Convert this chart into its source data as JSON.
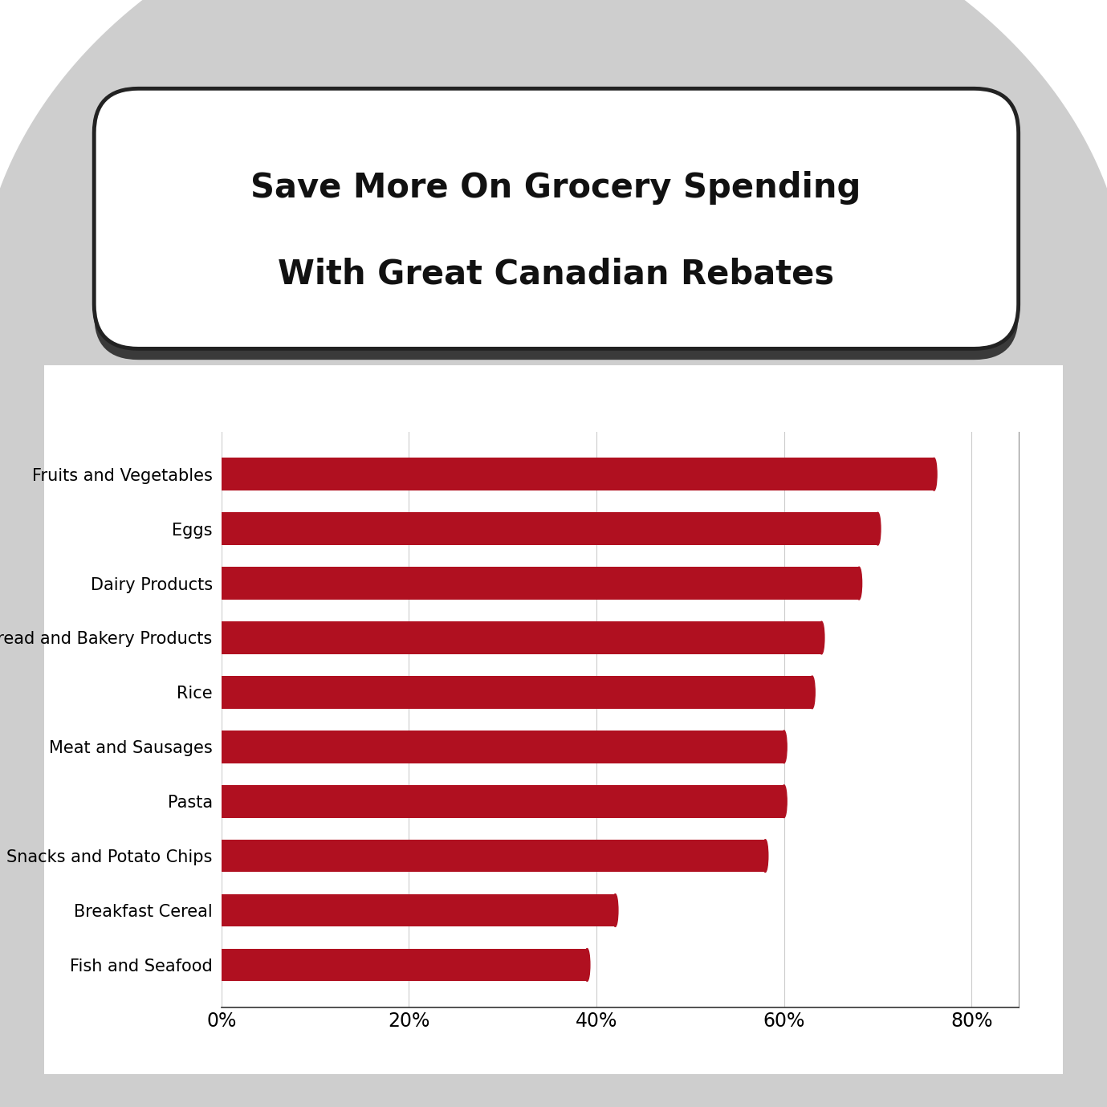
{
  "title_line1": "Save More On Grocery Spending",
  "title_line2": "With Great Canadian Rebates",
  "categories": [
    "Fruits and Vegetables",
    "Eggs",
    "Dairy Products",
    "Bread and Bakery Products",
    "Rice",
    "Meat and Sausages",
    "Pasta",
    "Snacks and Potato Chips",
    "Breakfast Cereal",
    "Fish and Seafood"
  ],
  "values": [
    76,
    70,
    68,
    64,
    63,
    60,
    60,
    58,
    42,
    39
  ],
  "bar_color": "#B01020",
  "background_color": "#ffffff",
  "outer_background_color": "#cecece",
  "chart_bg": "#ffffff",
  "xlim": [
    0,
    85
  ],
  "xticks": [
    0,
    20,
    40,
    60,
    80
  ],
  "xticklabels": [
    "0%",
    "20%",
    "40%",
    "60%",
    "80%"
  ],
  "bar_height": 0.6,
  "title_fontsize": 30,
  "tick_fontsize": 17,
  "ylabel_fontsize": 15,
  "grid_color": "#cccccc",
  "spine_color": "#888888"
}
